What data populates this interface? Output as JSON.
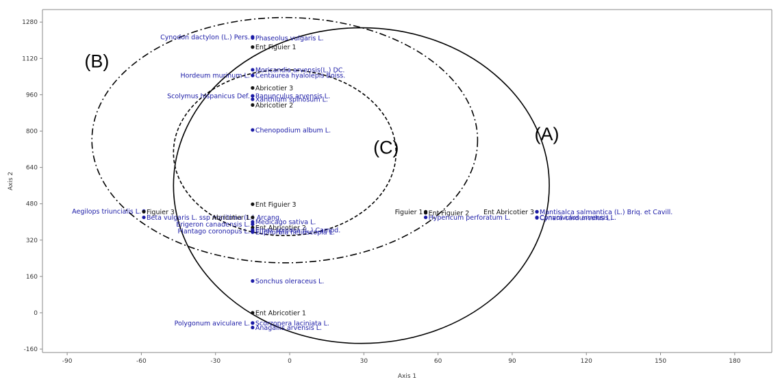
{
  "chart_data": {
    "type": "scatter",
    "title": "",
    "xlabel": "Axis 1",
    "ylabel": "Axis 2",
    "xlim": [
      -100,
      195
    ],
    "ylim": [
      -175,
      1335
    ],
    "xticks": [
      -90,
      -60,
      -30,
      0,
      30,
      60,
      90,
      120,
      150,
      180
    ],
    "yticks": [
      -160,
      0,
      160,
      320,
      480,
      640,
      800,
      960,
      1120,
      1280
    ],
    "grid": false,
    "colors": {
      "species": "#1a1aa6",
      "sites": "#111111",
      "axis": "#888888"
    },
    "points": [
      {
        "label": "Cynodon dactylon  (L.) Pers.",
        "x": -15,
        "y": 1215,
        "group": "species",
        "anchor": "end"
      },
      {
        "label": "Phaseolus vulgaris L.",
        "x": -15,
        "y": 1210,
        "group": "species",
        "anchor": "start"
      },
      {
        "label": "Ent Figuier 1",
        "x": -15,
        "y": 1170,
        "group": "site",
        "anchor": "start"
      },
      {
        "label": "Moricandia arvensis(L.) DC.",
        "x": -15,
        "y": 1070,
        "group": "species",
        "anchor": "start"
      },
      {
        "label": "Hordeum murinum L.",
        "x": -15,
        "y": 1045,
        "group": "species",
        "anchor": "end"
      },
      {
        "label": "Centaurea hyalolepis Boiss.",
        "x": -15,
        "y": 1045,
        "group": "species",
        "anchor": "start"
      },
      {
        "label": "Abricotier 3",
        "x": -15,
        "y": 990,
        "group": "site",
        "anchor": "start"
      },
      {
        "label": "Scolymus hispanicus Def.",
        "x": -15,
        "y": 955,
        "group": "species",
        "anchor": "end"
      },
      {
        "label": "Ranunculus arvensis L.",
        "x": -15,
        "y": 955,
        "group": "species",
        "anchor": "start"
      },
      {
        "label": "Xanthium spinosum  L.",
        "x": -15,
        "y": 940,
        "group": "species",
        "anchor": "start"
      },
      {
        "label": "Abricotier 2",
        "x": -15,
        "y": 915,
        "group": "site",
        "anchor": "start"
      },
      {
        "label": "Chenopodium album L.",
        "x": -15,
        "y": 805,
        "group": "species",
        "anchor": "start"
      },
      {
        "label": "Ent Figuier 3",
        "x": -15,
        "y": 478,
        "group": "site",
        "anchor": "start"
      },
      {
        "label": "Aegilops triuncialis L.",
        "x": -59,
        "y": 448,
        "group": "species",
        "anchor": "end"
      },
      {
        "label": "Figuier 3",
        "x": -59,
        "y": 445,
        "group": "site",
        "anchor": "start"
      },
      {
        "label": "Beta vulgaris L. ssp maritima (L.) Arcang.",
        "x": -59,
        "y": 420,
        "group": "species",
        "anchor": "start"
      },
      {
        "label": "Abricotier 1",
        "x": -15,
        "y": 420,
        "group": "site",
        "anchor": "end"
      },
      {
        "label": "Erigeron canadensis L.",
        "x": -15,
        "y": 390,
        "group": "species",
        "anchor": "end"
      },
      {
        "label": "Medicago sativa L.",
        "x": -15,
        "y": 400,
        "group": "species",
        "anchor": "start"
      },
      {
        "label": "Plantago coronopus L.",
        "x": -15,
        "y": 360,
        "group": "species",
        "anchor": "end"
      },
      {
        "label": "Ent Abricotier 2",
        "x": -15,
        "y": 375,
        "group": "site",
        "anchor": "start"
      },
      {
        "label": "Emex spinosa (L.) Campd.",
        "x": -15,
        "y": 365,
        "group": "species",
        "anchor": "start"
      },
      {
        "label": "Euphorbia helioscopia L.",
        "x": -15,
        "y": 355,
        "group": "species",
        "anchor": "start"
      },
      {
        "label": "Sonchus oleraceus L.",
        "x": -15,
        "y": 140,
        "group": "species",
        "anchor": "start"
      },
      {
        "label": "Ent Abricotier 1",
        "x": -15,
        "y": 0,
        "group": "site",
        "anchor": "start"
      },
      {
        "label": "Polygonum aviculare L.",
        "x": -15,
        "y": -45,
        "group": "species",
        "anchor": "end"
      },
      {
        "label": "Scorzonera laciniata L.",
        "x": -15,
        "y": -45,
        "group": "species",
        "anchor": "start"
      },
      {
        "label": "Anagallis arvensis L.",
        "x": -15,
        "y": -65,
        "group": "species",
        "anchor": "start"
      },
      {
        "label": "Figuier 1",
        "x": 55,
        "y": 445,
        "group": "site",
        "anchor": "end"
      },
      {
        "label": "Ent Figuier 2",
        "x": 55,
        "y": 440,
        "group": "site",
        "anchor": "start"
      },
      {
        "label": "Hypericum perforatum L.",
        "x": 55,
        "y": 420,
        "group": "species",
        "anchor": "start"
      },
      {
        "label": "Ent Abricotier 3",
        "x": 100,
        "y": 445,
        "group": "site",
        "anchor": "end"
      },
      {
        "label": "Mantisalca  salmantica  (L.)  Briq. et  Cavill.",
        "x": 100,
        "y": 445,
        "group": "species",
        "anchor": "start"
      },
      {
        "label": "Convolvulus arvensis L.",
        "x": 100,
        "y": 420,
        "group": "species",
        "anchor": "start"
      },
      {
        "label": "Cynara cardunculus L.",
        "x": 100,
        "y": 418,
        "group": "species",
        "anchor": "start"
      }
    ],
    "annotations": [
      {
        "text": "(A)",
        "x": 104,
        "y": 760
      },
      {
        "text": "(B)",
        "x": -78,
        "y": 1080
      },
      {
        "text": "(C)",
        "x": 39,
        "y": 700
      }
    ],
    "ellipses": [
      {
        "name": "A",
        "cx": 29,
        "cy": 560,
        "rx": 76,
        "ry": 695,
        "style": "solid"
      },
      {
        "name": "B",
        "cx": -2,
        "cy": 760,
        "rx": 78,
        "ry": 540,
        "style": "dashdot"
      },
      {
        "name": "C",
        "cx": -2,
        "cy": 705,
        "rx": 45,
        "ry": 365,
        "style": "dashed"
      }
    ]
  }
}
